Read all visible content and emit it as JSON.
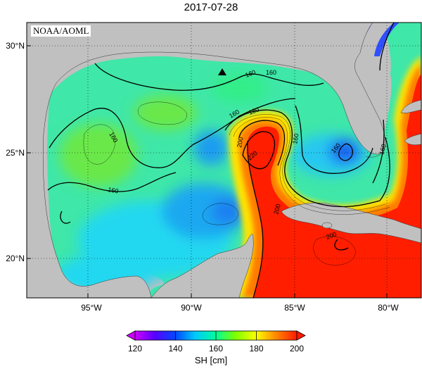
{
  "title": "2017-07-28",
  "agency": "NOAA/AOML",
  "axes": {
    "x_ticks": [
      "95°W",
      "90°W",
      "85°W",
      "80°W"
    ],
    "y_ticks": [
      "30°N",
      "25°N",
      "20°N"
    ]
  },
  "contour_labels": [
    "160",
    "160",
    "160",
    "160",
    "160",
    "160",
    "160",
    "180",
    "200",
    "220",
    "200",
    "200",
    "160"
  ],
  "colorbar": {
    "ticks": [
      "120",
      "140",
      "160",
      "180",
      "200"
    ],
    "label": "SH [cm]"
  },
  "marker": "triangle-marker"
}
